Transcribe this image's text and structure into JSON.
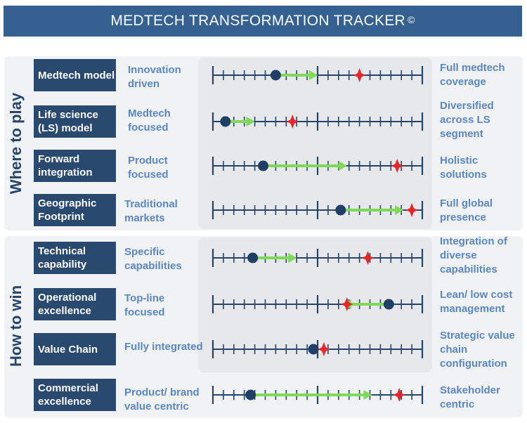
{
  "title": "MEDTECH TRANSFORMATION TRACKER",
  "copyright": "©",
  "groups": [
    {
      "label": "Where to play"
    },
    {
      "label": "How to win"
    }
  ],
  "rows": [
    {
      "name": "Medtech model",
      "left": "Innovation driven",
      "right": "Full medtech coverage",
      "current": 0.3,
      "target": 0.5,
      "goal": 0.7
    },
    {
      "name": "Life science (LS) model",
      "left": "Medtech focused",
      "right": "Diversified across LS segment",
      "current": 0.06,
      "target": 0.2,
      "goal": 0.38
    },
    {
      "name": "Forward integration",
      "left": "Product focused",
      "right": "Holistic solutions",
      "current": 0.24,
      "target": 0.64,
      "goal": 0.88
    },
    {
      "name": "Geographic Footprint",
      "left": "Traditional markets",
      "right": "Full global presence",
      "current": 0.61,
      "target": 0.91,
      "goal": 0.95
    },
    {
      "name": "Technical capability",
      "left": "Specific capabilities",
      "right": "Integration of diverse capabilities",
      "current": 0.19,
      "target": 0.4,
      "goal": 0.74
    },
    {
      "name": "Operational excellence",
      "left": "Top-line focused",
      "right": "Lean/ low cost management",
      "current": 0.84,
      "target": 0.62,
      "goal": 0.64
    },
    {
      "name": "Value Chain",
      "left": "Fully integrated",
      "right": "Strategic value chain configuration",
      "current": 0.48,
      "target": 0.48,
      "goal": 0.53
    },
    {
      "name": "Commercial excellence",
      "left": "Product/ brand value centric",
      "right": "Stakeholder centric",
      "current": 0.18,
      "target": 0.76,
      "goal": 0.89
    }
  ],
  "colors": {
    "banner": "#34618f",
    "label_box": "#294a6e",
    "text_blue": "#5b87c0",
    "scale": "#26456a",
    "current_dot": "#1f3f66",
    "arrow": "#7ed957",
    "goal_star": "#e8262b"
  },
  "icons": {
    "current": "dot",
    "goal": "red-star",
    "move": "green-arrow"
  }
}
